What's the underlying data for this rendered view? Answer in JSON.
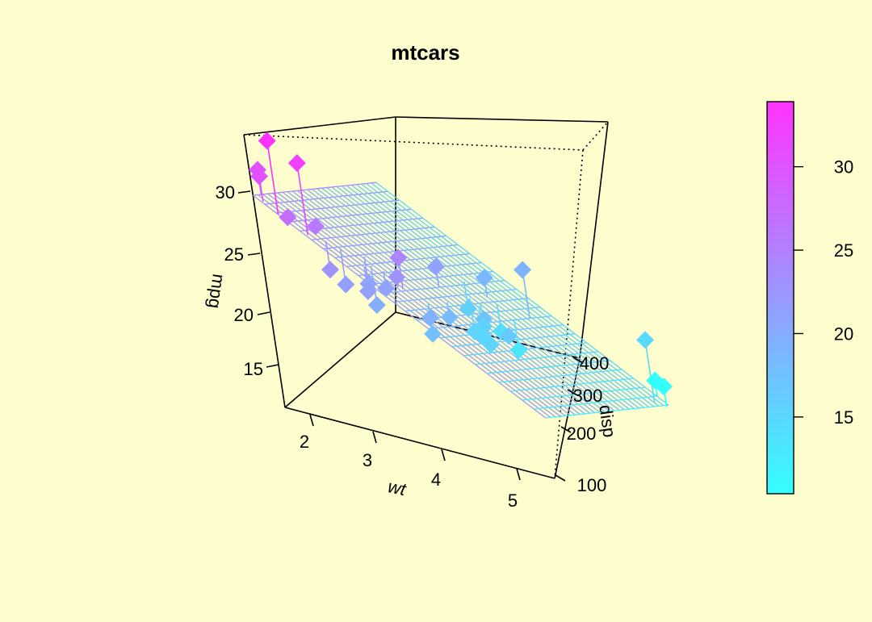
{
  "background_color": "#FEFDCD",
  "chart_data": {
    "type": "scatter3d",
    "title": "mtcars",
    "xlabel": "wt",
    "ylabel": "disp",
    "zlabel": "mpg",
    "x_ticks": [
      "2",
      "3",
      "4",
      "5"
    ],
    "y_ticks": [
      "100",
      "200",
      "300",
      "400"
    ],
    "z_ticks": [
      "15",
      "20",
      "25",
      "30"
    ],
    "xlim": [
      1.5,
      5.4
    ],
    "ylim": [
      71,
      472
    ],
    "zlim": [
      10.4,
      33.9
    ],
    "regression_plane": {
      "intercept": 34.96,
      "wt_coef": -3.35,
      "disp_coef": -0.0177
    },
    "colorbar": {
      "ticks": [
        "15",
        "20",
        "25",
        "30"
      ],
      "range": [
        10.4,
        33.9
      ],
      "low_color": "#33FFFF",
      "high_color": "#FF33FF"
    },
    "points": [
      {
        "wt": 2.62,
        "disp": 160,
        "mpg": 21.0
      },
      {
        "wt": 2.875,
        "disp": 160,
        "mpg": 21.0
      },
      {
        "wt": 2.32,
        "disp": 108,
        "mpg": 22.8
      },
      {
        "wt": 3.215,
        "disp": 258,
        "mpg": 21.4
      },
      {
        "wt": 3.44,
        "disp": 360,
        "mpg": 18.7
      },
      {
        "wt": 3.46,
        "disp": 225,
        "mpg": 18.1
      },
      {
        "wt": 3.57,
        "disp": 360,
        "mpg": 14.3
      },
      {
        "wt": 3.19,
        "disp": 146.7,
        "mpg": 24.4
      },
      {
        "wt": 3.15,
        "disp": 140.8,
        "mpg": 22.8
      },
      {
        "wt": 3.44,
        "disp": 167.6,
        "mpg": 19.2
      },
      {
        "wt": 3.44,
        "disp": 167.6,
        "mpg": 17.8
      },
      {
        "wt": 4.07,
        "disp": 275.8,
        "mpg": 16.4
      },
      {
        "wt": 3.73,
        "disp": 275.8,
        "mpg": 17.3
      },
      {
        "wt": 3.78,
        "disp": 275.8,
        "mpg": 15.2
      },
      {
        "wt": 5.25,
        "disp": 472,
        "mpg": 10.4
      },
      {
        "wt": 5.424,
        "disp": 460,
        "mpg": 10.4
      },
      {
        "wt": 5.345,
        "disp": 440,
        "mpg": 14.7
      },
      {
        "wt": 2.2,
        "disp": 78.7,
        "mpg": 32.4
      },
      {
        "wt": 1.615,
        "disp": 75.7,
        "mpg": 30.4
      },
      {
        "wt": 1.835,
        "disp": 71.1,
        "mpg": 33.9
      },
      {
        "wt": 2.465,
        "disp": 120.1,
        "mpg": 21.5
      },
      {
        "wt": 3.52,
        "disp": 318,
        "mpg": 15.5
      },
      {
        "wt": 3.435,
        "disp": 304,
        "mpg": 15.2
      },
      {
        "wt": 3.84,
        "disp": 350,
        "mpg": 13.3
      },
      {
        "wt": 3.845,
        "disp": 400,
        "mpg": 19.2
      },
      {
        "wt": 1.935,
        "disp": 79,
        "mpg": 27.3
      },
      {
        "wt": 2.14,
        "disp": 120.3,
        "mpg": 26.0
      },
      {
        "wt": 1.513,
        "disp": 95.1,
        "mpg": 30.4
      },
      {
        "wt": 3.17,
        "disp": 351,
        "mpg": 15.8
      },
      {
        "wt": 2.77,
        "disp": 145,
        "mpg": 19.7
      },
      {
        "wt": 3.57,
        "disp": 301,
        "mpg": 15.0
      },
      {
        "wt": 2.78,
        "disp": 121,
        "mpg": 21.4
      }
    ]
  }
}
